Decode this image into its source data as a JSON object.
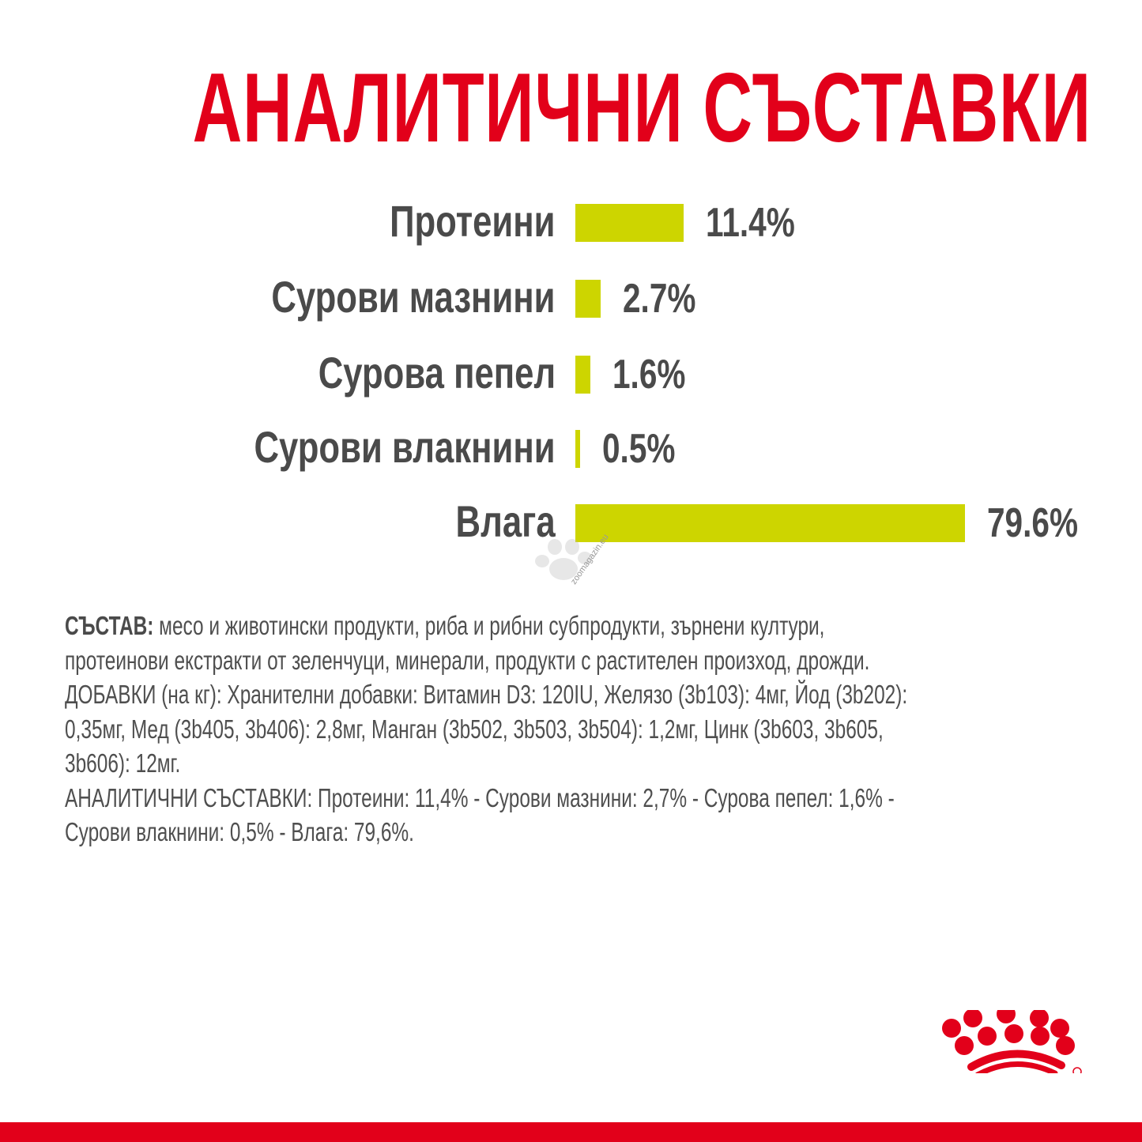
{
  "title": "АНАЛИТИЧНИ СЪСТАВКИ",
  "chart_data": {
    "type": "bar",
    "orientation": "horizontal",
    "categories": [
      "Протеини",
      "Сурови мазнини",
      "Сурова пепел",
      "Сурови влакнини",
      "Влага"
    ],
    "values": [
      11.4,
      2.7,
      1.6,
      0.5,
      79.6
    ],
    "value_labels": [
      "11.4%",
      "2.7%",
      "1.6%",
      "0.5%",
      "79.6%"
    ],
    "unit": "%",
    "bar_color": "#cdd500",
    "grid": false
  },
  "composition": {
    "lines": [
      {
        "bold": "СЪСТАВ:",
        "text": " месо и животински продукти, риба и рибни субпродукти, зърнени култури,"
      },
      {
        "bold": "",
        "text": "протеинови екстракти от зеленчуци, минерали, продукти с растителен произход, дрожди."
      },
      {
        "bold": "",
        "text": "ДОБАВКИ (на кг): Хранителни добавки: Витамин D3: 120IU, Желязо (3b103): 4мг, Йод (3b202):"
      },
      {
        "bold": "",
        "text": "0,35мг, Мед (3b405, 3b406): 2,8мг, Манган (3b502, 3b503, 3b504): 1,2мг, Цинк (3b603, 3b605,"
      },
      {
        "bold": "",
        "text": "3b606): 12мг."
      },
      {
        "bold": "",
        "text": "АНАЛИТИЧНИ СЪСТАВКИ: Протеини: 11,4% - Сурови мазнини: 2,7% - Сурова пепел: 1,6% -"
      },
      {
        "bold": "",
        "text": "Сурови влакнини: 0,5% - Влага: 79,6%."
      }
    ]
  },
  "watermark": "zoomagazin.eu",
  "brand_color": "#e2001a",
  "logo": "royal-canin-crown-icon"
}
